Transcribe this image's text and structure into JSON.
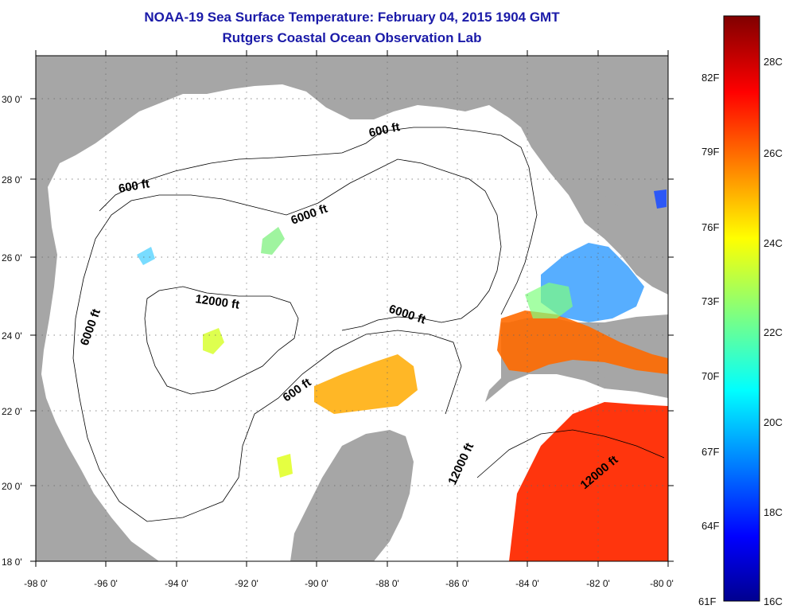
{
  "title": {
    "line1": "NOAA-19 Sea Surface Temperature:  February 04, 2015 1904 GMT",
    "line2": "Rutgers Coastal Ocean Observation Lab"
  },
  "map": {
    "lon_range": [
      -98,
      -80
    ],
    "lat_range": [
      18,
      31
    ],
    "x_tick_labels": [
      "-98 0'",
      "-96 0'",
      "-94 0'",
      "-92 0'",
      "-90 0'",
      "-88 0'",
      "-86 0'",
      "-84 0'",
      "-82 0'",
      "-80 0'"
    ],
    "y_tick_labels": [
      "18 0'",
      "20 0'",
      "22 0'",
      "24 0'",
      "26 0'",
      "28 0'",
      "30 0'"
    ],
    "land_color": "#a6a6a6",
    "ocean_nodata_color": "#ffffff",
    "grid": "dotted",
    "contour_labels": {
      "c600_a": "600 ft",
      "c600_b": "600 ft",
      "c600_c": "600 ft",
      "c6000_a": "6000 ft",
      "c6000_b": "6000 ft",
      "c6000_c": "6000 ft",
      "c12000_a": "12000 ft",
      "c12000_b": "12000 ft",
      "c12000_c": "12000 ft"
    }
  },
  "colorbar": {
    "fahrenheit_labels": [
      "82F",
      "79F",
      "76F",
      "73F",
      "70F",
      "67F",
      "64F",
      "61F"
    ],
    "celsius_labels": [
      "28C",
      "26C",
      "24C",
      "22C",
      "20C",
      "18C",
      "16C"
    ],
    "colormap": "jet",
    "range_c": [
      16,
      29
    ]
  }
}
